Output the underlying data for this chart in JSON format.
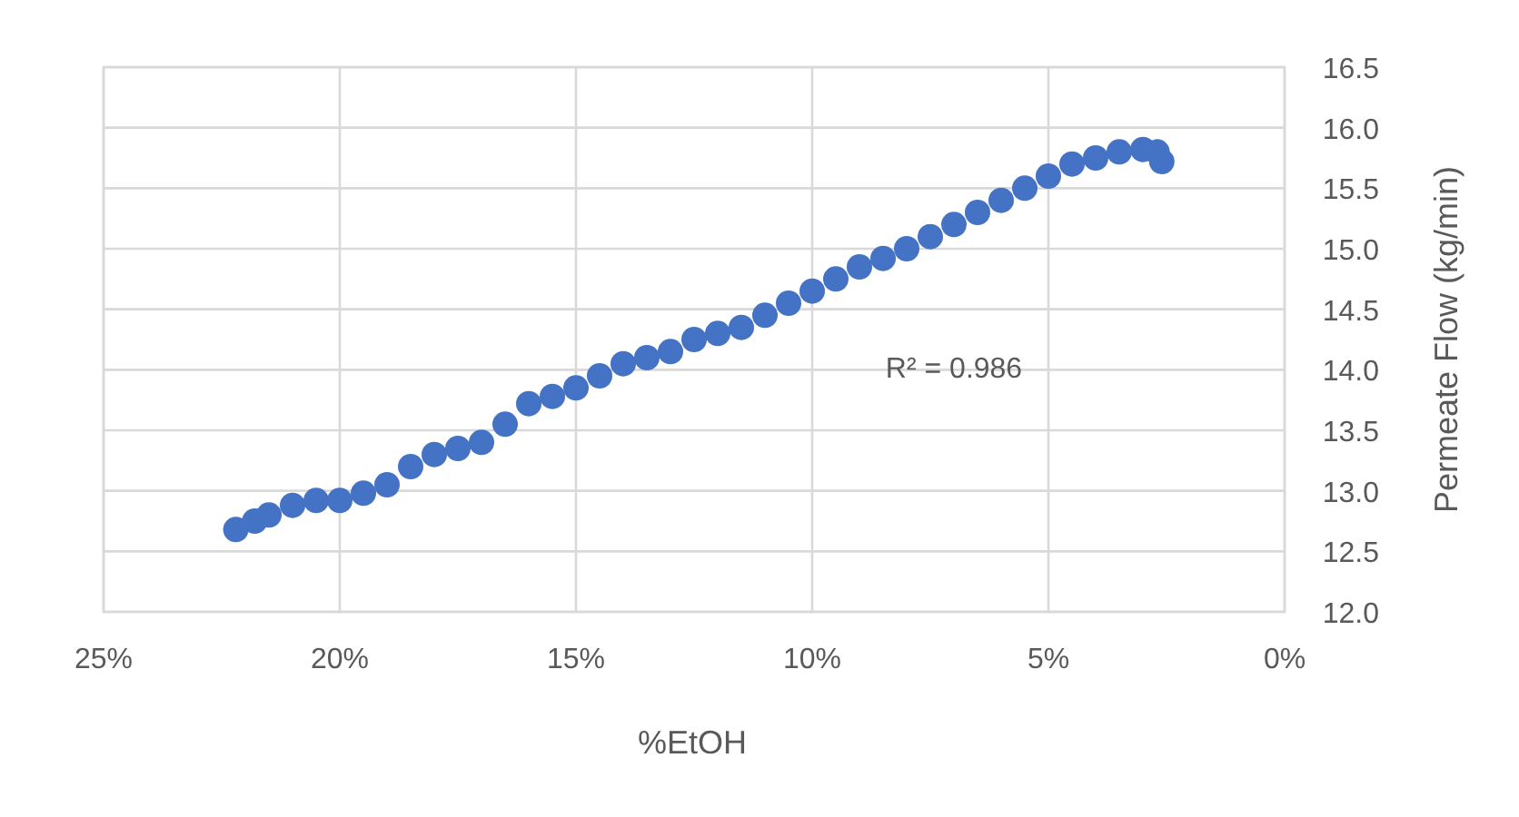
{
  "chart_data": {
    "type": "scatter",
    "xlabel": "%EtOH",
    "ylabel": "Permeate Flow (kg/min)",
    "annotations": [
      "R² = 0.986"
    ],
    "x": [
      22.2,
      21.8,
      21.5,
      21.0,
      20.5,
      20.0,
      19.5,
      19.0,
      18.5,
      18.0,
      17.5,
      17.0,
      16.5,
      16.0,
      15.5,
      15.0,
      14.5,
      14.0,
      13.5,
      13.0,
      12.5,
      12.0,
      11.5,
      11.0,
      10.5,
      10.0,
      9.5,
      9.0,
      8.5,
      8.0,
      7.5,
      7.0,
      6.5,
      6.0,
      5.5,
      5.0,
      4.5,
      4.0,
      3.5,
      3.0,
      2.7,
      2.6
    ],
    "series": [
      {
        "color": "#4472c4",
        "values": [
          12.68,
          12.75,
          12.8,
          12.88,
          12.92,
          12.92,
          12.98,
          13.05,
          13.2,
          13.3,
          13.35,
          13.4,
          13.55,
          13.72,
          13.78,
          13.85,
          13.95,
          14.05,
          14.1,
          14.15,
          14.25,
          14.3,
          14.35,
          14.45,
          14.55,
          14.65,
          14.75,
          14.85,
          14.92,
          15.0,
          15.1,
          15.2,
          15.3,
          15.4,
          15.5,
          15.6,
          15.7,
          15.75,
          15.8,
          15.82,
          15.8,
          15.72
        ]
      }
    ],
    "xlim": [
      25,
      0
    ],
    "xticks": [
      {
        "value": 25,
        "label": "25%"
      },
      {
        "value": 20,
        "label": "20%"
      },
      {
        "value": 15,
        "label": "15%"
      },
      {
        "value": 10,
        "label": "10%"
      },
      {
        "value": 5,
        "label": "5%"
      },
      {
        "value": 0,
        "label": "0%"
      }
    ],
    "ylim": [
      12,
      16.5
    ],
    "yticks": [
      {
        "value": 12,
        "label": "12.0"
      },
      {
        "value": 12.5,
        "label": "12.5"
      },
      {
        "value": 13,
        "label": "13.0"
      },
      {
        "value": 13.5,
        "label": "13.5"
      },
      {
        "value": 14,
        "label": "14.0"
      },
      {
        "value": 14.5,
        "label": "14.5"
      },
      {
        "value": 15,
        "label": "15.0"
      },
      {
        "value": 15.5,
        "label": "15.5"
      },
      {
        "value": 16,
        "label": "16.0"
      },
      {
        "value": 16.5,
        "label": "16.5"
      }
    ],
    "grid": true,
    "marker": "circle"
  }
}
